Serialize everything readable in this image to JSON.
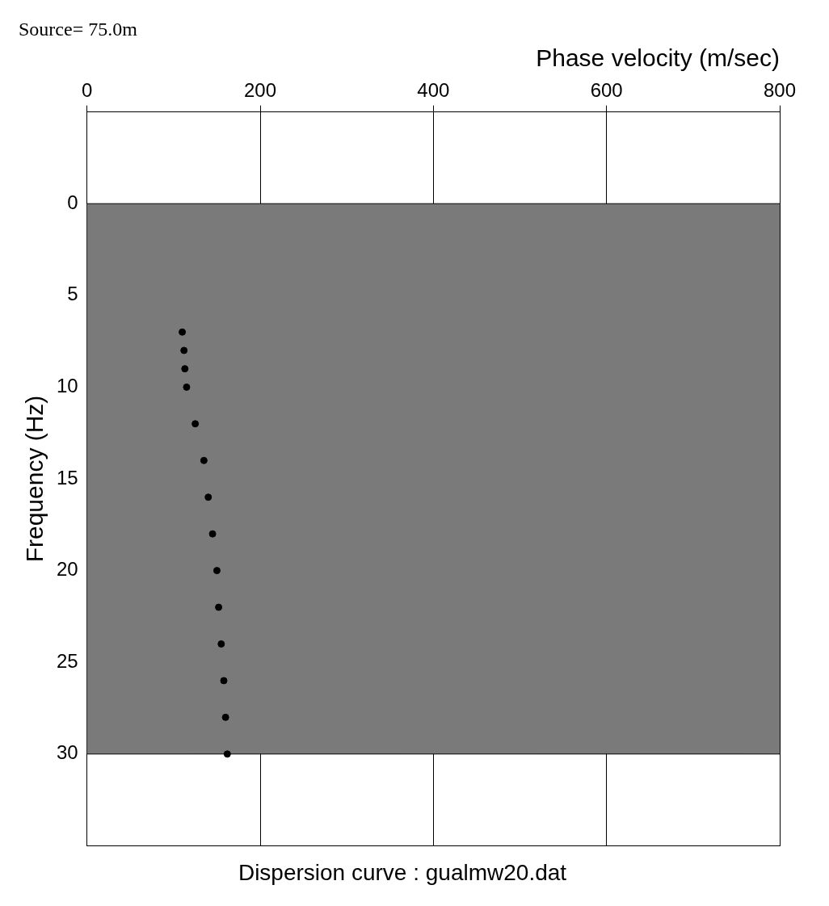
{
  "chart_data": {
    "type": "scatter",
    "title": "Source= 75.0m",
    "subtitle": "Dispersion curve : gualmw20.dat",
    "x_label": "Phase velocity (m/sec)",
    "y_label": "Frequency (Hz)",
    "series": [
      {
        "name": "Dispersion curve",
        "color": "#000000",
        "marker": "circle",
        "x": [
          110,
          112,
          113,
          115,
          125,
          135,
          140,
          145,
          150,
          152,
          155,
          158,
          160,
          162
        ],
        "values": [
          7,
          8,
          9,
          10,
          12,
          14,
          16,
          18,
          20,
          22,
          24,
          26,
          28,
          30
        ]
      }
    ],
    "xlim": [
      0,
      800
    ],
    "xticks": [
      0,
      200,
      400,
      600,
      800
    ],
    "ylim": [
      -5,
      35
    ],
    "yticks": [
      0,
      5,
      10,
      15,
      20,
      25,
      30
    ],
    "grid": true
  }
}
